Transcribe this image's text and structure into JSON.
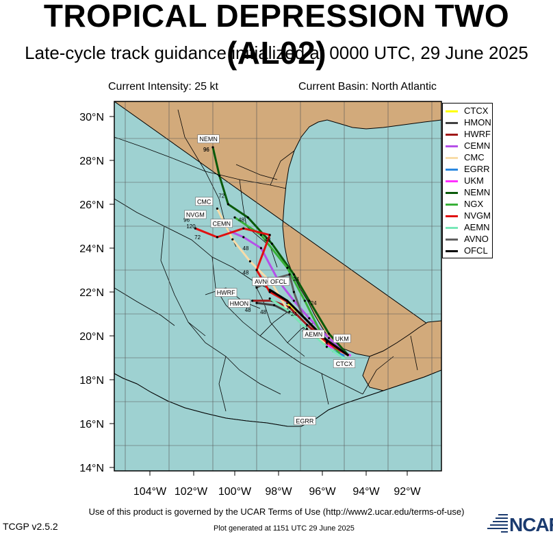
{
  "header": {
    "title": "TROPICAL DEPRESSION TWO (AL02)",
    "subtitle": "Late-cycle track guidance initialized at 0000 UTC, 29 June 2025",
    "intensity": "Current Intensity: 25 kt",
    "basin": "Current Basin: North Atlantic"
  },
  "map": {
    "lat_labels": [
      "30°N",
      "28°N",
      "26°N",
      "24°N",
      "22°N",
      "20°N",
      "18°N",
      "16°N",
      "14°N"
    ],
    "lon_labels": [
      "104°W",
      "102°W",
      "100°W",
      "98°W",
      "96°W",
      "94°W",
      "92°W"
    ],
    "land_color": "#d2aa7b",
    "water_color": "#9ed1d1"
  },
  "chart_data": {
    "type": "map-tracks",
    "lat_range": [
      13.8,
      30.7
    ],
    "lon_range": [
      -105.5,
      -90.5
    ],
    "models": [
      {
        "name": "CTCX",
        "color": "#ffff00",
        "track": [
          [
            -94.8,
            19.1
          ],
          [
            -95.6,
            19.6
          ],
          [
            -96.4,
            20.4
          ],
          [
            -97.0,
            21.0
          ],
          [
            -97.6,
            21.5
          ]
        ]
      },
      {
        "name": "HMON",
        "color": "#404040",
        "track": [
          [
            -94.8,
            19.1
          ],
          [
            -95.8,
            19.6
          ],
          [
            -96.7,
            20.3
          ],
          [
            -97.4,
            21.0
          ],
          [
            -98.2,
            21.4
          ],
          [
            -99.0,
            21.5
          ]
        ]
      },
      {
        "name": "HWRF",
        "color": "#a01818",
        "track": [
          [
            -94.8,
            19.1
          ],
          [
            -95.8,
            19.7
          ],
          [
            -96.7,
            20.5
          ],
          [
            -97.5,
            21.3
          ],
          [
            -98.3,
            21.6
          ],
          [
            -99.2,
            21.6
          ]
        ]
      },
      {
        "name": "CEMN",
        "color": "#b550e8",
        "track": [
          [
            -94.8,
            19.1
          ],
          [
            -95.7,
            19.9
          ],
          [
            -96.6,
            20.8
          ],
          [
            -97.3,
            21.6
          ],
          [
            -98.0,
            22.5
          ],
          [
            -98.8,
            24.0
          ],
          [
            -99.6,
            24.5
          ],
          [
            -100.3,
            24.8
          ]
        ]
      },
      {
        "name": "CMC",
        "color": "#f8dca8",
        "track": [
          [
            -94.8,
            19.1
          ],
          [
            -95.8,
            19.6
          ],
          [
            -96.8,
            20.4
          ],
          [
            -97.6,
            21.2
          ],
          [
            -98.3,
            22.4
          ],
          [
            -99.3,
            23.4
          ],
          [
            -100.1,
            24.4
          ],
          [
            -100.8,
            25.8
          ]
        ]
      },
      {
        "name": "EGRR",
        "color": "#2a88e0",
        "track": [
          [
            -95.0,
            19.1
          ],
          [
            -95.5,
            19.3
          ]
        ]
      },
      {
        "name": "UKM",
        "color": "#ff30ff",
        "track": [
          [
            -94.7,
            19.1
          ],
          [
            -95.4,
            19.4
          ],
          [
            -95.9,
            19.6
          ]
        ]
      },
      {
        "name": "NEMN",
        "color": "#0a5a0a",
        "track": [
          [
            -94.8,
            19.1
          ],
          [
            -95.7,
            20.1
          ],
          [
            -96.6,
            21.6
          ],
          [
            -97.3,
            22.8
          ],
          [
            -98.3,
            24.2
          ],
          [
            -99.4,
            25.4
          ],
          [
            -100.3,
            26.0
          ],
          [
            -100.7,
            27.3
          ],
          [
            -101.0,
            28.6
          ]
        ]
      },
      {
        "name": "NGX",
        "color": "#38b038",
        "track": [
          [
            -95.2,
            19.2
          ],
          [
            -96.0,
            20.0
          ],
          [
            -96.8,
            21.6
          ],
          [
            -97.6,
            23.1
          ],
          [
            -98.8,
            24.6
          ],
          [
            -100.0,
            25.4
          ]
        ]
      },
      {
        "name": "NVGM",
        "color": "#e01010",
        "track": [
          [
            -94.8,
            19.1
          ],
          [
            -95.8,
            19.7
          ],
          [
            -96.7,
            20.7
          ],
          [
            -97.5,
            21.5
          ],
          [
            -98.4,
            22.0
          ],
          [
            -99.0,
            23.0
          ],
          [
            -98.4,
            24.6
          ],
          [
            -99.6,
            24.9
          ],
          [
            -100.8,
            24.5
          ],
          [
            -101.8,
            24.9
          ]
        ]
      },
      {
        "name": "AEMN",
        "color": "#78e8b8",
        "track": [
          [
            -94.9,
            18.9
          ],
          [
            -95.8,
            19.5
          ],
          [
            -96.7,
            20.3
          ],
          [
            -97.5,
            21.1
          ],
          [
            -98.4,
            21.7
          ]
        ]
      },
      {
        "name": "AVNO",
        "color": "#606060",
        "track": [
          [
            -94.8,
            19.1
          ],
          [
            -95.9,
            19.9
          ],
          [
            -96.9,
            20.9
          ],
          [
            -97.3,
            22.0
          ],
          [
            -97.5,
            22.8
          ],
          [
            -98.2,
            22.6
          ],
          [
            -99.0,
            22.2
          ]
        ]
      },
      {
        "name": "OFCL",
        "color": "#000000",
        "track": [
          [
            -94.8,
            19.1
          ],
          [
            -95.8,
            19.8
          ],
          [
            -96.8,
            20.8
          ],
          [
            -97.6,
            21.6
          ],
          [
            -98.4,
            22.1
          ]
        ]
      }
    ],
    "tags": [
      {
        "label": "NEMN",
        "lon": -101.2,
        "lat": 28.95
      },
      {
        "label": "CMC",
        "lon": -101.4,
        "lat": 26.1
      },
      {
        "label": "NVGM",
        "lon": -101.8,
        "lat": 25.5
      },
      {
        "label": "CEMN",
        "lon": -100.6,
        "lat": 25.1
      },
      {
        "label": "AVNO",
        "lon": -98.7,
        "lat": 22.45
      },
      {
        "label": "OFCL",
        "lon": -98.0,
        "lat": 22.45
      },
      {
        "label": "HWRF",
        "lon": -100.4,
        "lat": 21.95
      },
      {
        "label": "HMON",
        "lon": -99.8,
        "lat": 21.45
      },
      {
        "label": "AEMN",
        "lon": -96.4,
        "lat": 20.05
      },
      {
        "label": "UKM",
        "lon": -95.1,
        "lat": 19.85
      },
      {
        "label": "CTCX",
        "lon": -95.0,
        "lat": 18.7
      },
      {
        "label": "EGRR",
        "lon": -96.8,
        "lat": 16.1
      }
    ],
    "hour_labels": [
      {
        "text": "96",
        "lon": -101.3,
        "lat": 28.4
      },
      {
        "text": "72",
        "lon": -100.6,
        "lat": 26.3
      },
      {
        "text": "96",
        "lon": -102.2,
        "lat": 25.2
      },
      {
        "text": "120",
        "lon": -102.0,
        "lat": 24.9
      },
      {
        "text": "72",
        "lon": -101.7,
        "lat": 24.4
      },
      {
        "text": "48",
        "lon": -99.7,
        "lat": 25.2
      },
      {
        "text": "48",
        "lon": -99.5,
        "lat": 23.9
      },
      {
        "text": "48",
        "lon": -98.5,
        "lat": 24.3
      },
      {
        "text": "48",
        "lon": -99.5,
        "lat": 22.8
      },
      {
        "text": "24",
        "lon": -97.2,
        "lat": 22.5
      },
      {
        "text": "24",
        "lon": -96.4,
        "lat": 21.4
      },
      {
        "text": "24",
        "lon": -96.8,
        "lat": 20.2
      },
      {
        "text": "24",
        "lon": -97.3,
        "lat": 20.9
      },
      {
        "text": "48",
        "lon": -99.4,
        "lat": 21.1
      },
      {
        "text": "48",
        "lon": -98.7,
        "lat": 21.0
      },
      {
        "text": "96",
        "lon": -101.3,
        "lat": 28.4
      }
    ]
  },
  "legend": {
    "items": [
      {
        "label": "CTCX",
        "color": "#ffff00"
      },
      {
        "label": "HMON",
        "color": "#404040"
      },
      {
        "label": "HWRF",
        "color": "#a01818"
      },
      {
        "label": "CEMN",
        "color": "#b550e8"
      },
      {
        "label": "CMC",
        "color": "#f8dca8"
      },
      {
        "label": "EGRR",
        "color": "#2a88e0"
      },
      {
        "label": "UKM",
        "color": "#ff30ff"
      },
      {
        "label": "NEMN",
        "color": "#0a5a0a"
      },
      {
        "label": "NGX",
        "color": "#38b038"
      },
      {
        "label": "NVGM",
        "color": "#e01010"
      },
      {
        "label": "AEMN",
        "color": "#78e8b8"
      },
      {
        "label": "AVNO",
        "color": "#606060"
      },
      {
        "label": "OFCL",
        "color": "#000000"
      }
    ]
  },
  "footer": {
    "terms": "Use of this product is governed by the UCAR Terms of Use (http://www2.ucar.edu/terms-of-use)",
    "version": "TCGP v2.5.2",
    "generated": "Plot generated at 1151 UTC   29 June 2025",
    "logo_text": "NCAR"
  }
}
